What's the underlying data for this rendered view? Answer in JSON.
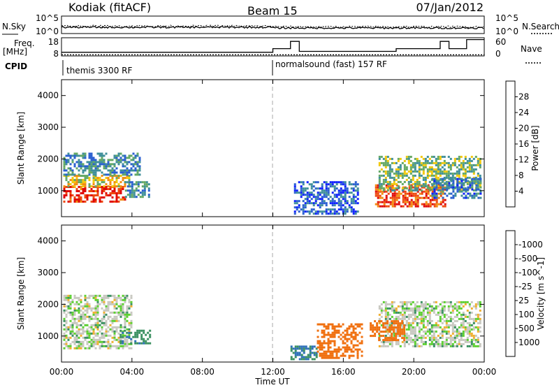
{
  "header": {
    "radar": "Kodiak (fitACF)",
    "beam": "Beam 15",
    "date": "07/Jan/2012"
  },
  "noise_panel": {
    "left_label": "N.Sky",
    "right_label": "N.Search",
    "left_ticks": [
      "10^5",
      "10^0"
    ],
    "right_ticks": [
      "10^5",
      "10^0"
    ]
  },
  "freq_panel": {
    "left_label_line1": "Freq.",
    "left_label_line2": "[MHz]",
    "right_label": "Nave",
    "left_ticks": [
      "18",
      "8"
    ],
    "right_ticks": [
      "60",
      "0"
    ]
  },
  "cpid": {
    "label": "CPID",
    "segments": [
      {
        "text": "themis 3300 RF",
        "start_hour": 0
      },
      {
        "text": "normalsound (fast) 157 RF",
        "start_hour": 12
      }
    ]
  },
  "power_panel": {
    "ylabel": "Slant Range [km]",
    "yticks": [
      "1000",
      "2000",
      "3000",
      "4000"
    ],
    "colorbar_label": "Power [dB]",
    "colorbar_ticks": [
      "4",
      "8",
      "12",
      "16",
      "20",
      "24",
      "28"
    ],
    "colorbar_colors": [
      "#1020ff",
      "#2a5fd0",
      "#3f8f9a",
      "#64a864",
      "#f2c80a",
      "#f28c10",
      "#ee4a10",
      "#e00a0a"
    ]
  },
  "velocity_panel": {
    "ylabel": "Slant Range [km]",
    "yticks": [
      "1000",
      "2000",
      "3000",
      "4000"
    ],
    "colorbar_label": "Velocity [m s^-1]",
    "colorbar_ticks": [
      "1000",
      "500",
      "100",
      "25",
      "-25",
      "-100",
      "-500",
      "-1000"
    ],
    "colorbar_colors": [
      "#1a30c8",
      "#2d70b8",
      "#3a9060",
      "#5cd030",
      "#c8c8c0",
      "#f0b030",
      "#f07010",
      "#e82010",
      "#e00000"
    ]
  },
  "xaxis": {
    "label": "Time UT",
    "ticks": [
      "00:00",
      "04:00",
      "08:00",
      "12:00",
      "16:00",
      "20:00",
      "00:00"
    ]
  },
  "chart_data": {
    "type": "heatmap",
    "title": "Kodiak (fitACF) Beam 15 07/Jan/2012",
    "xlabel": "Time UT",
    "ylabel": "Slant Range [km]",
    "xlim_hours": [
      0,
      24
    ],
    "ylim_km": [
      180,
      4500
    ],
    "grid": false,
    "legend_placement": "right",
    "power_regions": [
      {
        "t0": 0.1,
        "t1": 3.6,
        "r0": 650,
        "r1": 1150,
        "db": 28
      },
      {
        "t0": 0.1,
        "t1": 3.8,
        "r0": 1150,
        "r1": 1500,
        "db": 18
      },
      {
        "t0": 0.1,
        "t1": 4.5,
        "r0": 1500,
        "r1": 2200,
        "db": 10
      },
      {
        "t0": 3.6,
        "t1": 5.0,
        "r0": 800,
        "r1": 1300,
        "db": 10
      },
      {
        "t0": 13.2,
        "t1": 16.8,
        "r0": 300,
        "r1": 1300,
        "db": 6
      },
      {
        "t0": 17.8,
        "t1": 21.8,
        "r0": 500,
        "r1": 1200,
        "db": 26
      },
      {
        "t0": 18.0,
        "t1": 23.8,
        "r0": 1000,
        "r1": 2100,
        "db": 14
      },
      {
        "t0": 21.0,
        "t1": 23.8,
        "r0": 800,
        "r1": 1400,
        "db": 8
      }
    ],
    "velocity_regions": [
      {
        "t0": 0.1,
        "t1": 4.0,
        "r0": 600,
        "r1": 2300,
        "ms": 0
      },
      {
        "t0": 3.3,
        "t1": 5.0,
        "r0": 750,
        "r1": 1200,
        "ms": 80
      },
      {
        "t0": 13.0,
        "t1": 14.5,
        "r0": 300,
        "r1": 700,
        "ms": 100
      },
      {
        "t0": 14.5,
        "t1": 17.0,
        "r0": 300,
        "r1": 1400,
        "ms": -150
      },
      {
        "t0": 18.0,
        "t1": 23.8,
        "r0": 700,
        "r1": 2100,
        "ms": 0
      },
      {
        "t0": 17.5,
        "t1": 19.5,
        "r0": 900,
        "r1": 1500,
        "ms": -200
      }
    ],
    "noise_sky_level": [
      {
        "t0": 0,
        "t1": 12,
        "log10": 1.8
      },
      {
        "t0": 12,
        "t1": 24,
        "log10": 1.6
      }
    ],
    "frequency_mhz": [
      {
        "t0": 0,
        "t1": 12.0,
        "mhz": 10.0
      },
      {
        "t0": 12.0,
        "t1": 13.0,
        "mhz": 12.0
      },
      {
        "t0": 13.0,
        "t1": 13.5,
        "mhz": 16.0
      },
      {
        "t0": 13.5,
        "t1": 19.0,
        "mhz": 10.5
      },
      {
        "t0": 19.0,
        "t1": 21.5,
        "mhz": 12.0
      },
      {
        "t0": 21.5,
        "t1": 22.0,
        "mhz": 16.0
      },
      {
        "t0": 22.0,
        "t1": 23.0,
        "mhz": 12.0
      },
      {
        "t0": 23.0,
        "t1": 24.0,
        "mhz": 17.0
      }
    ]
  }
}
